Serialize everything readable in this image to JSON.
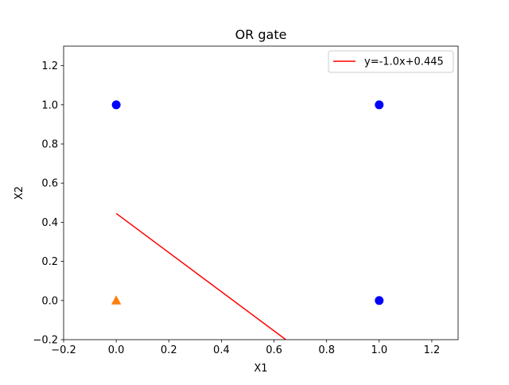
{
  "chart_data": {
    "type": "scatter",
    "title": "OR gate",
    "xlabel": "X1",
    "ylabel": "X2",
    "xlim": [
      -0.2,
      1.3
    ],
    "ylim": [
      -0.2,
      1.3
    ],
    "xticks": [
      -0.2,
      0.0,
      0.2,
      0.4,
      0.6,
      0.8,
      1.0,
      1.2
    ],
    "yticks": [
      -0.2,
      0.0,
      0.2,
      0.4,
      0.6,
      0.8,
      1.0,
      1.2
    ],
    "xtick_labels": [
      "−0.2",
      "0.0",
      "0.2",
      "0.4",
      "0.6",
      "0.8",
      "1.0",
      "1.2"
    ],
    "ytick_labels": [
      "−0.2",
      "0.0",
      "0.2",
      "0.4",
      "0.6",
      "0.8",
      "1.0",
      "1.2"
    ],
    "grid": false,
    "legend_position": "top-right",
    "series": [
      {
        "kind": "scatter",
        "marker": "circle",
        "color": "#0000ff",
        "points": [
          [
            0,
            1
          ],
          [
            1,
            1
          ],
          [
            1,
            0
          ]
        ]
      },
      {
        "kind": "scatter",
        "marker": "triangle",
        "color": "#ff7f0e",
        "points": [
          [
            0,
            0
          ]
        ]
      },
      {
        "kind": "line",
        "name": "y=-1.0x+0.445",
        "color": "#ff0000",
        "slope": -1.0,
        "intercept": 0.445,
        "x_range": [
          0,
          0.645
        ]
      }
    ]
  }
}
